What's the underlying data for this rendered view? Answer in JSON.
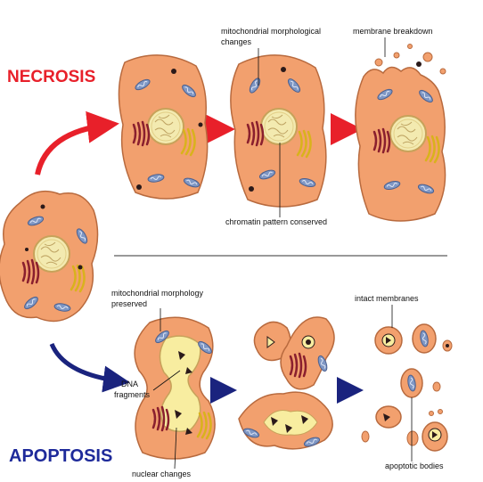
{
  "titles": {
    "necrosis": "NECROSIS",
    "apoptosis": "APOPTOSIS"
  },
  "labels": {
    "mito_changes_line1": "mitochondrial morphological",
    "mito_changes_line2": "changes",
    "membrane_breakdown": "membrane breakdown",
    "chromatin_conserved": "chromatin pattern conserved",
    "mito_preserved_line1": "mitochondrial morphology",
    "mito_preserved_line2": "preserved",
    "dna_line1": "DNA",
    "dna_line2": "fragments",
    "nuclear_changes": "nuclear changes",
    "intact_membranes": "intact membranes",
    "apoptotic_bodies": "apoptotic bodies"
  },
  "colors": {
    "necrosis_title": "#e8202a",
    "apoptosis_title": "#1e2a9a",
    "necrosis_arrow": "#e8202a",
    "apoptosis_arrow": "#1a237e",
    "cell_fill": "#f2a06e",
    "cell_stroke": "#b86a3e",
    "nucleus_fill": "#f3eab0",
    "mito_fill": "#7f97c4",
    "er_color": "#8a1f2e",
    "golgi_color": "#d9b21c"
  }
}
